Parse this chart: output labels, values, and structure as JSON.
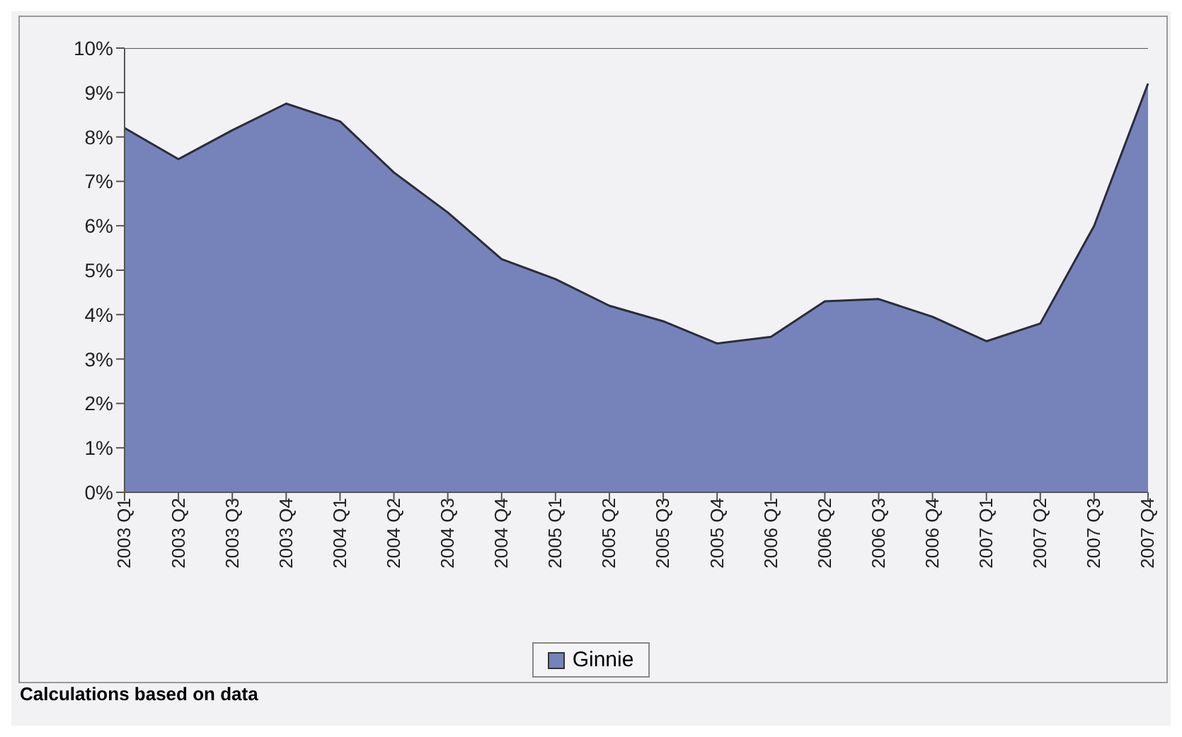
{
  "chart_data": {
    "type": "area",
    "categories": [
      "2003 Q1",
      "2003 Q2",
      "2003 Q3",
      "2003 Q4",
      "2004 Q1",
      "2004 Q2",
      "2004 Q3",
      "2004 Q4",
      "2005 Q1",
      "2005 Q2",
      "2005 Q3",
      "2005 Q4",
      "2006 Q1",
      "2006 Q2",
      "2006 Q3",
      "2006 Q4",
      "2007 Q1",
      "2007 Q2",
      "2007 Q3",
      "2007 Q4"
    ],
    "series": [
      {
        "name": "Ginnie",
        "color": "#7683bb",
        "values": [
          8.2,
          7.5,
          8.15,
          8.75,
          8.35,
          7.2,
          6.3,
          5.25,
          4.8,
          4.2,
          3.85,
          3.35,
          3.5,
          4.3,
          4.35,
          3.95,
          3.4,
          3.8,
          6.0,
          9.2
        ]
      }
    ],
    "ylim": [
      0,
      10
    ],
    "yticks": [
      {
        "value": 0,
        "label": "0%"
      },
      {
        "value": 1,
        "label": "1%"
      },
      {
        "value": 2,
        "label": "2%"
      },
      {
        "value": 3,
        "label": "3%"
      },
      {
        "value": 4,
        "label": "4%"
      },
      {
        "value": 5,
        "label": "5%"
      },
      {
        "value": 6,
        "label": "6%"
      },
      {
        "value": 7,
        "label": "7%"
      },
      {
        "value": 8,
        "label": "8%"
      },
      {
        "value": 9,
        "label": "9%"
      },
      {
        "value": 10,
        "label": "10%"
      }
    ],
    "legend": "bottom",
    "grid": false,
    "annotations": [
      "Calculations based on data"
    ]
  }
}
